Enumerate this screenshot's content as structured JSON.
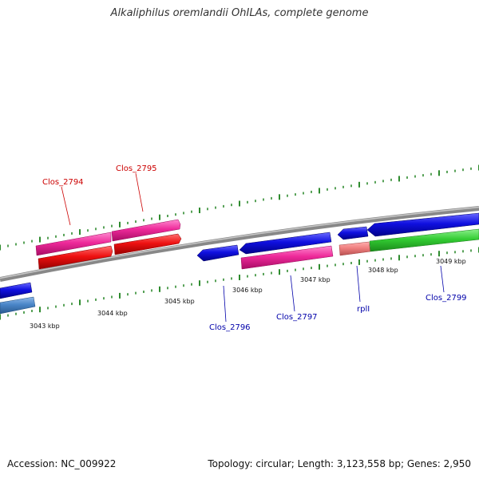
{
  "title": "Alkaliphilus oremlandii OhILAs, complete genome",
  "accession": "Accession: NC_009922",
  "summary": "Topology: circular; Length: 3,123,558 bp; Genes: 2,950",
  "colors": {
    "backbone": "#888888",
    "tick": "#2e8b2e",
    "forward_label": "#cc0000",
    "reverse_label": "#0000aa",
    "blue": "#1010e0",
    "steel": "#4a86c8",
    "pink": "#ee2a9a",
    "red": "#ee1111",
    "salmon": "#f08080",
    "green": "#33cc33"
  },
  "scale": {
    "unit": "kbp",
    "labels": [
      "3043 kbp",
      "3044 kbp",
      "3045 kbp",
      "3046 kbp",
      "3047 kbp",
      "3048 kbp",
      "3049 kbp"
    ]
  },
  "gene_labels": [
    {
      "text": "Clos_2794",
      "strand": "forward"
    },
    {
      "text": "Clos_2795",
      "strand": "forward"
    },
    {
      "text": "Clos_2796",
      "strand": "reverse"
    },
    {
      "text": "Clos_2797",
      "strand": "reverse"
    },
    {
      "text": "rplI",
      "strand": "reverse"
    },
    {
      "text": "Clos_2799",
      "strand": "reverse"
    }
  ]
}
